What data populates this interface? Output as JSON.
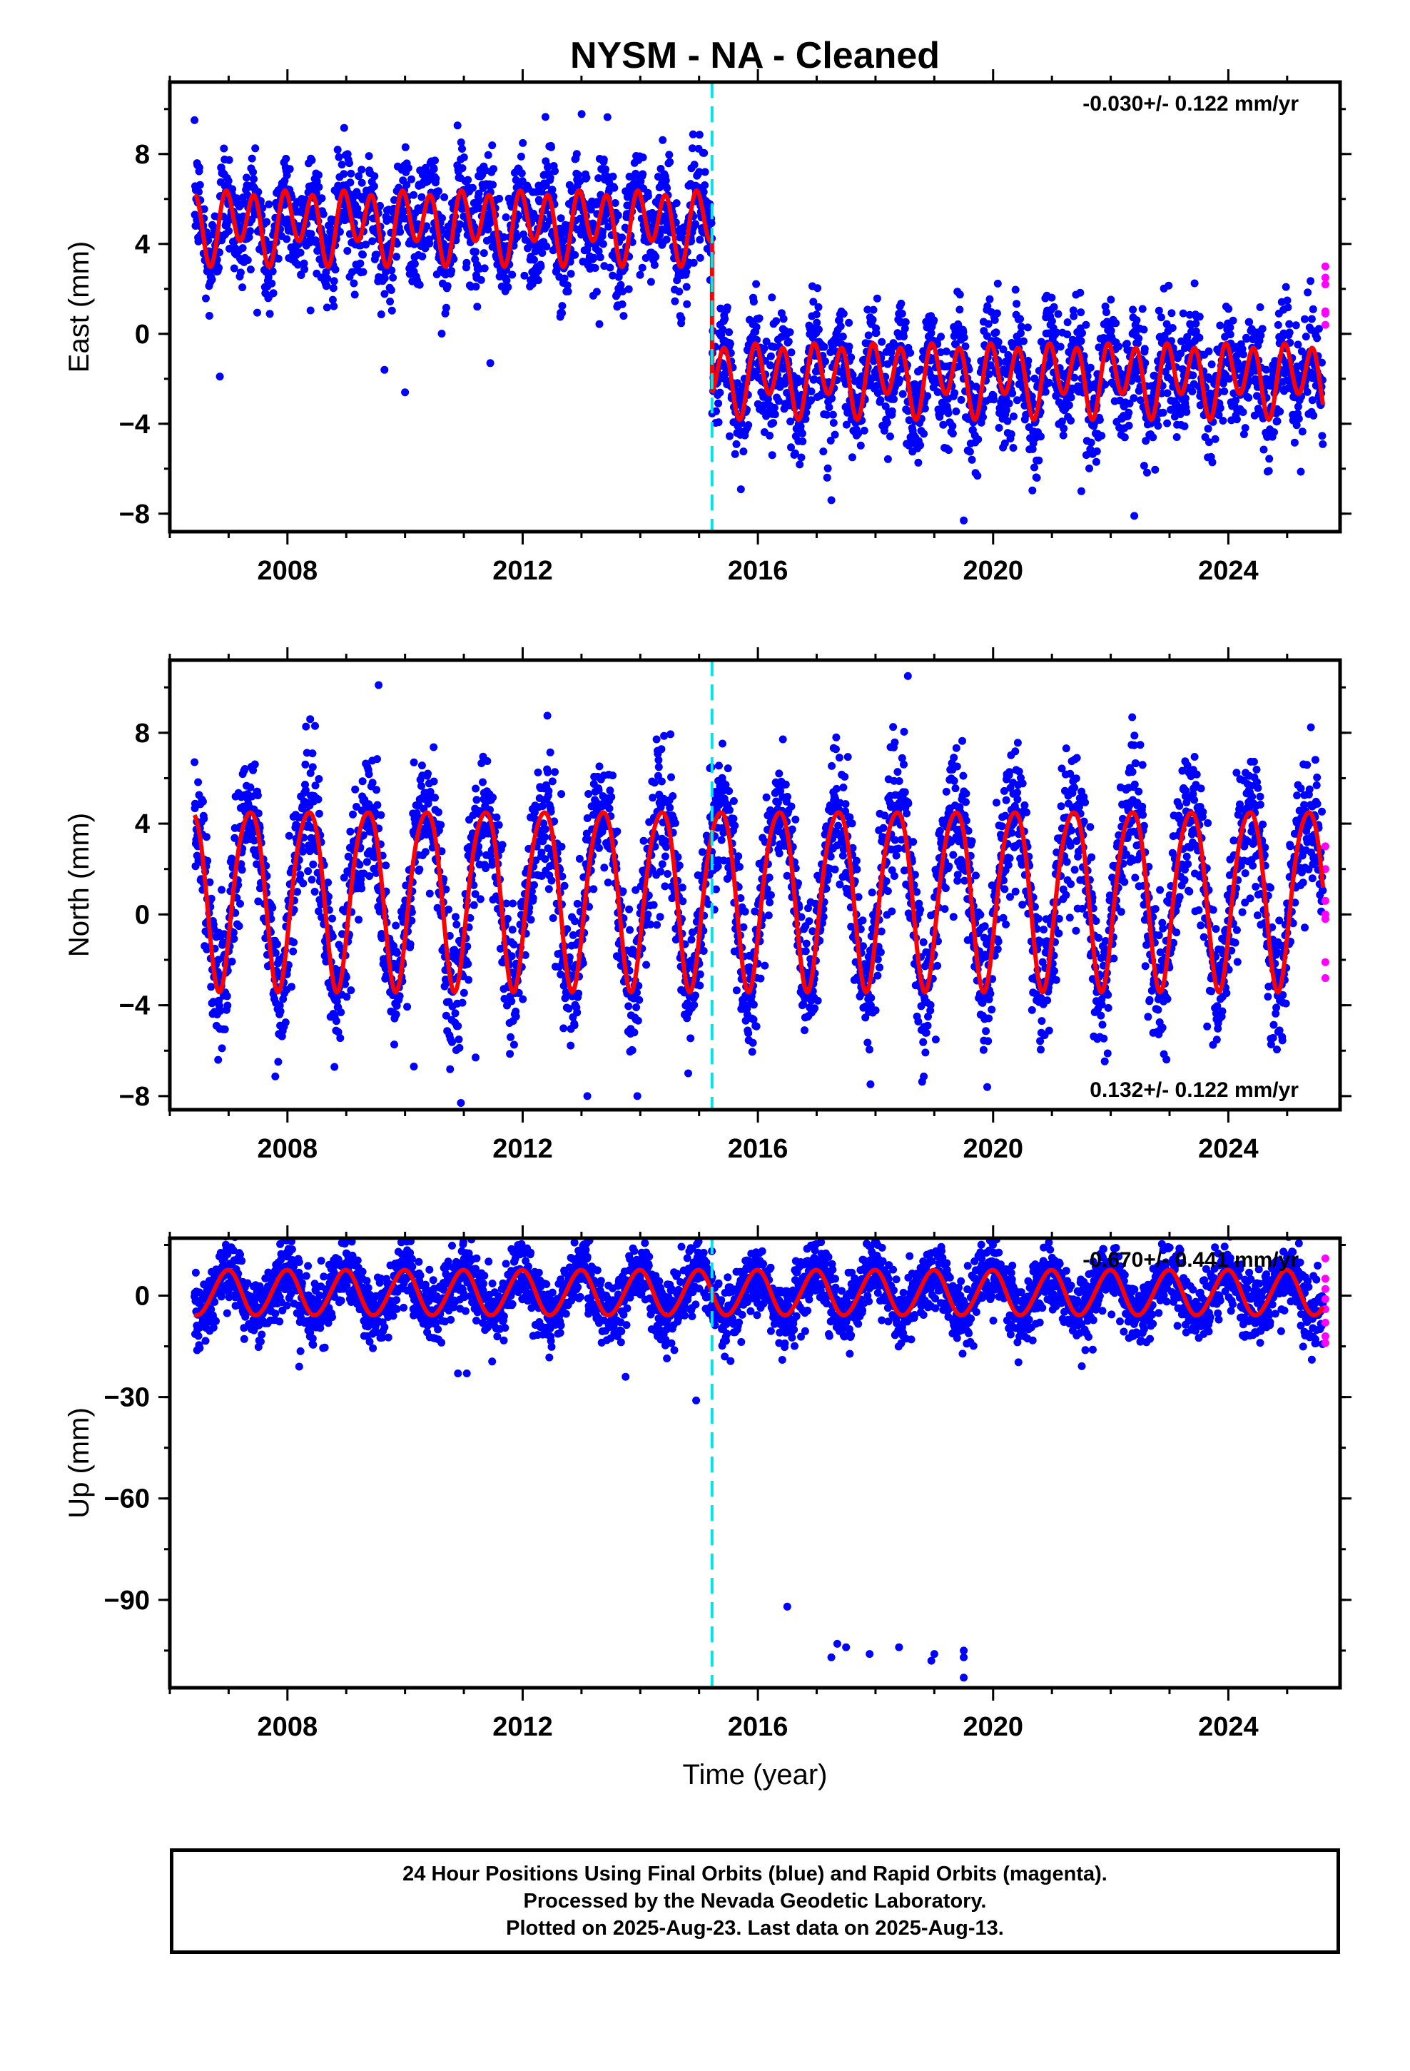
{
  "colors": {
    "final_points": "#0000ff",
    "rapid_points": "#ff00ff",
    "model": "#ff0000",
    "offset_line": "#00e5e5",
    "frame": "#000000"
  },
  "title": "NYSM  - NA - Cleaned",
  "footer": {
    "line1": "24 Hour Positions Using Final Orbits (blue) and Rapid Orbits (magenta).",
    "line2": "Processed by the Nevada Geodetic Laboratory.",
    "line3": "Plotted on 2025-Aug-23. Last data on 2025-Aug-13."
  },
  "chart_data": [
    {
      "type": "scatter",
      "panel": "east",
      "ylabel": "East (mm)",
      "xlim": [
        2006.0,
        2025.9
      ],
      "ylim": [
        -8.8,
        11.2
      ],
      "yticks": [
        -8,
        -4,
        0,
        4,
        8
      ],
      "xticks": [
        2008,
        2012,
        2016,
        2020,
        2024
      ],
      "rate_label": "-0.030+/- 0.122 mm/yr",
      "rate_position": "top-right",
      "offset_epoch": 2015.22,
      "data_span": [
        2006.42,
        2025.61
      ],
      "model": {
        "segments": [
          {
            "start": 2006.42,
            "end": 2015.22,
            "mean": 4.9
          },
          {
            "start": 2015.22,
            "end": 2025.61,
            "mean": -1.9
          }
        ],
        "annual_sin": 0.5,
        "annual_cos": 0.3,
        "semiannual_sin": -0.9,
        "semiannual_cos": 1.0,
        "noise_sd": 1.2
      },
      "outliers": [
        [
          2006.85,
          -1.9
        ],
        [
          2009.65,
          -1.6
        ],
        [
          2010.0,
          -2.6
        ],
        [
          2011.45,
          -1.3
        ],
        [
          2017.25,
          -7.4
        ],
        [
          2019.5,
          -8.3
        ],
        [
          2022.4,
          -8.1
        ],
        [
          2021.5,
          -7.0
        ]
      ],
      "rapid": {
        "x": 2025.65,
        "values": [
          3.0,
          2.5,
          2.2,
          1.0,
          0.4,
          0.9
        ]
      }
    },
    {
      "type": "scatter",
      "panel": "north",
      "ylabel": "North (mm)",
      "xlim": [
        2006.0,
        2025.9
      ],
      "ylim": [
        -8.6,
        11.2
      ],
      "yticks": [
        -8,
        -4,
        0,
        4,
        8
      ],
      "xticks": [
        2008,
        2012,
        2016,
        2020,
        2024
      ],
      "rate_label": "0.132+/- 0.122 mm/yr",
      "rate_position": "bottom-right",
      "offset_epoch": 2015.22,
      "data_span": [
        2006.42,
        2025.61
      ],
      "model": {
        "segments": [
          {
            "start": 2006.42,
            "end": 2025.61,
            "mean": 1.0
          }
        ],
        "annual_sin": 3.2,
        "annual_cos": -2.3,
        "semiannual_sin": 0.4,
        "semiannual_cos": 0.3,
        "noise_sd": 1.5
      },
      "outliers": [
        [
          2010.15,
          -6.7
        ],
        [
          2010.95,
          -8.3
        ],
        [
          2013.1,
          -8.0
        ],
        [
          2013.95,
          -8.0
        ],
        [
          2009.55,
          10.1
        ],
        [
          2018.55,
          10.5
        ],
        [
          2019.9,
          -7.6
        ],
        [
          2011.2,
          -6.3
        ]
      ],
      "rapid": {
        "x": 2025.65,
        "values": [
          3.0,
          2.0,
          0.6,
          -0.2,
          -2.1,
          -2.8,
          0.0
        ]
      }
    },
    {
      "type": "scatter",
      "panel": "up",
      "ylabel": "Up (mm)",
      "xlabel": "Time (year)",
      "xlim": [
        2006.0,
        2025.9
      ],
      "ylim": [
        -116,
        17
      ],
      "yticks": [
        -90,
        -60,
        -30,
        0
      ],
      "xticks": [
        2008,
        2012,
        2016,
        2020,
        2024
      ],
      "rate_label": "-0.670+/- 0.441 mm/yr",
      "rate_position": "top-right",
      "offset_epoch": 2015.22,
      "data_span": [
        2006.42,
        2025.61
      ],
      "model": {
        "segments": [
          {
            "start": 2006.42,
            "end": 2015.22,
            "mean": 0.8
          },
          {
            "start": 2015.22,
            "end": 2025.61,
            "mean": 0.8
          }
        ],
        "annual_sin": -1.0,
        "annual_cos": 6.6,
        "semiannual_sin": 0.3,
        "semiannual_cos": 0.2,
        "noise_sd": 4.8
      },
      "outliers": [
        [
          2016.5,
          -92
        ],
        [
          2017.25,
          -107
        ],
        [
          2017.35,
          -103
        ],
        [
          2017.5,
          -104
        ],
        [
          2017.9,
          -106
        ],
        [
          2018.4,
          -104
        ],
        [
          2018.95,
          -108
        ],
        [
          2019.0,
          -106
        ],
        [
          2019.5,
          -105
        ],
        [
          2019.5,
          -107
        ],
        [
          2019.5,
          -113
        ],
        [
          2014.95,
          -31
        ],
        [
          2008.2,
          -21
        ],
        [
          2013.75,
          -24
        ],
        [
          2010.9,
          -23
        ],
        [
          2011.05,
          -23
        ]
      ],
      "rapid": {
        "x": 2025.65,
        "values": [
          11,
          5,
          2,
          -1,
          -4,
          -8,
          -12,
          -14
        ]
      }
    }
  ]
}
